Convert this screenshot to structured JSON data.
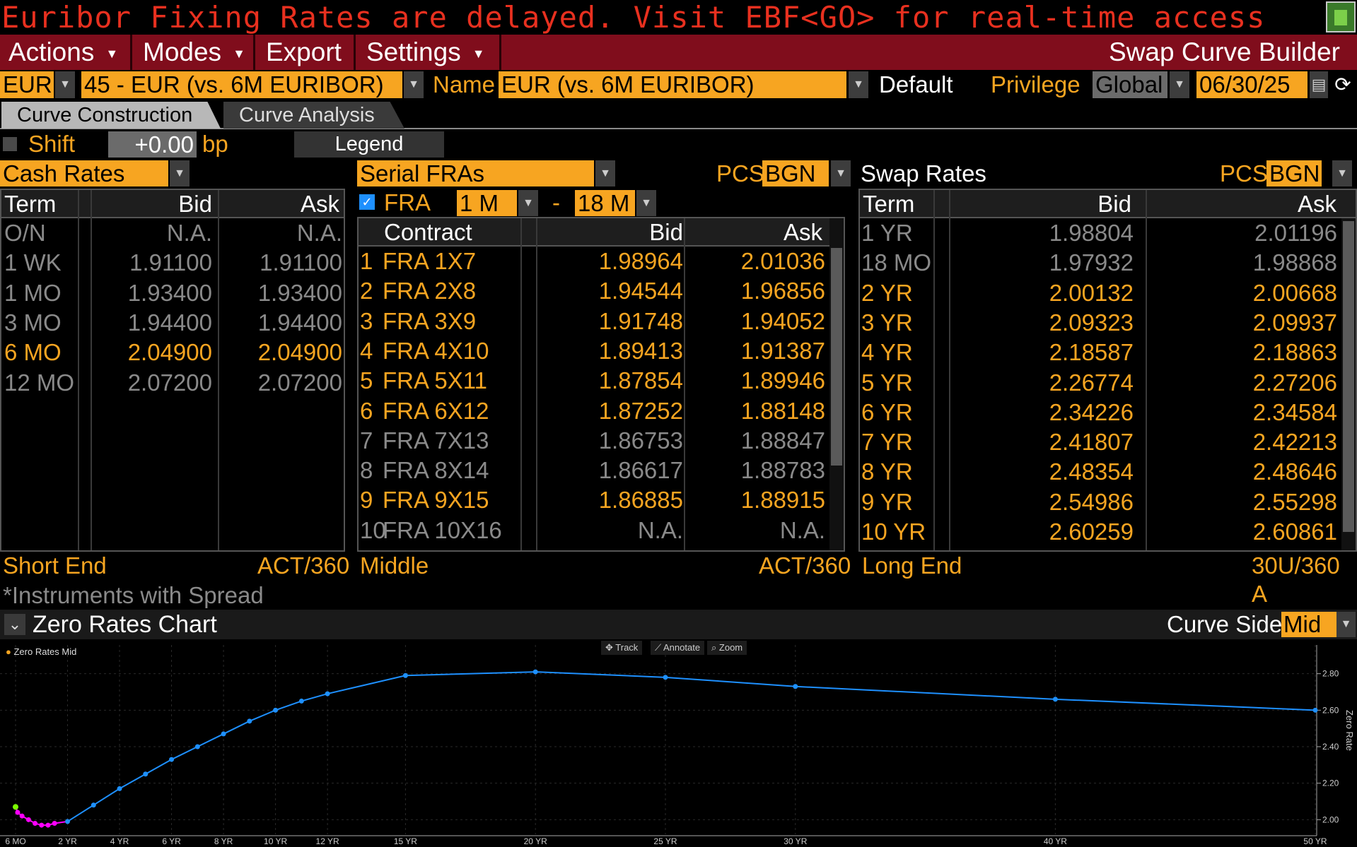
{
  "banner": {
    "text": "Euribor Fixing Rates are delayed. Visit EBF<GO> for real-time access"
  },
  "menu": {
    "actions": "Actions",
    "modes": "Modes",
    "export": "Export",
    "settings": "Settings",
    "app_title": "Swap Curve Builder"
  },
  "selection": {
    "currency": "EUR",
    "curve": "45 - EUR (vs. 6M EURIBOR)",
    "name_label": "Name",
    "name_value": "EUR (vs. 6M EURIBOR)",
    "default_label": "Default",
    "privilege_label": "Privilege",
    "privilege_value": "Global",
    "date": "06/30/25"
  },
  "tabs": {
    "construction": "Curve Construction",
    "analysis": "Curve Analysis"
  },
  "shift": {
    "label": "Shift",
    "value": "+0.00",
    "unit": "bp",
    "legend_button": "Legend"
  },
  "cash": {
    "title": "Cash Rates",
    "headers": {
      "term": "Term",
      "bid": "Bid",
      "ask": "Ask"
    },
    "rows": [
      {
        "term": "O/N",
        "bid": "N.A.",
        "ask": "N.A.",
        "state": "grey"
      },
      {
        "term": "1 WK",
        "bid": "1.91100",
        "ask": "1.91100",
        "state": "grey"
      },
      {
        "term": "1 MO",
        "bid": "1.93400",
        "ask": "1.93400",
        "state": "grey"
      },
      {
        "term": "3 MO",
        "bid": "1.94400",
        "ask": "1.94400",
        "state": "grey"
      },
      {
        "term": "6 MO",
        "bid": "2.04900",
        "ask": "2.04900",
        "state": "amber"
      },
      {
        "term": "12 MO",
        "bid": "2.07200",
        "ask": "2.07200",
        "state": "grey"
      }
    ],
    "footer_left": "Short End",
    "footer_right": "ACT/360"
  },
  "fra": {
    "title": "Serial FRAs",
    "pcs_label": "PCS",
    "pcs_value": "BGN",
    "fra_label": "FRA",
    "from": "1 M",
    "dash": "-",
    "to": "18 M",
    "headers": {
      "contract": "Contract",
      "bid": "Bid",
      "ask": "Ask"
    },
    "rows": [
      {
        "num": "1",
        "contract": "FRA 1X7",
        "bid": "1.98964",
        "ask": "2.01036",
        "state": "amber"
      },
      {
        "num": "2",
        "contract": "FRA 2X8",
        "bid": "1.94544",
        "ask": "1.96856",
        "state": "amber"
      },
      {
        "num": "3",
        "contract": "FRA 3X9",
        "bid": "1.91748",
        "ask": "1.94052",
        "state": "amber"
      },
      {
        "num": "4",
        "contract": "FRA 4X10",
        "bid": "1.89413",
        "ask": "1.91387",
        "state": "amber"
      },
      {
        "num": "5",
        "contract": "FRA 5X11",
        "bid": "1.87854",
        "ask": "1.89946",
        "state": "amber"
      },
      {
        "num": "6",
        "contract": "FRA 6X12",
        "bid": "1.87252",
        "ask": "1.88148",
        "state": "amber"
      },
      {
        "num": "7",
        "contract": "FRA 7X13",
        "bid": "1.86753",
        "ask": "1.88847",
        "state": "grey"
      },
      {
        "num": "8",
        "contract": "FRA 8X14",
        "bid": "1.86617",
        "ask": "1.88783",
        "state": "grey"
      },
      {
        "num": "9",
        "contract": "FRA 9X15",
        "bid": "1.86885",
        "ask": "1.88915",
        "state": "amber"
      },
      {
        "num": "10",
        "contract": "FRA 10X16",
        "bid": "N.A.",
        "ask": "N.A.",
        "state": "grey"
      }
    ],
    "footer_left": "Middle",
    "footer_right": "ACT/360"
  },
  "swap": {
    "title": "Swap Rates",
    "pcs_label": "PCS",
    "pcs_value": "BGN",
    "headers": {
      "term": "Term",
      "bid": "Bid",
      "ask": "Ask"
    },
    "rows": [
      {
        "term": "1 YR",
        "bid": "1.98804",
        "ask": "2.01196",
        "state": "grey"
      },
      {
        "term": "18 MO",
        "bid": "1.97932",
        "ask": "1.98868",
        "state": "grey"
      },
      {
        "term": "2 YR",
        "bid": "2.00132",
        "ask": "2.00668",
        "state": "amber"
      },
      {
        "term": "3 YR",
        "bid": "2.09323",
        "ask": "2.09937",
        "state": "amber"
      },
      {
        "term": "4 YR",
        "bid": "2.18587",
        "ask": "2.18863",
        "state": "amber"
      },
      {
        "term": "5 YR",
        "bid": "2.26774",
        "ask": "2.27206",
        "state": "amber"
      },
      {
        "term": "6 YR",
        "bid": "2.34226",
        "ask": "2.34584",
        "state": "amber"
      },
      {
        "term": "7 YR",
        "bid": "2.41807",
        "ask": "2.42213",
        "state": "amber"
      },
      {
        "term": "8 YR",
        "bid": "2.48354",
        "ask": "2.48646",
        "state": "amber"
      },
      {
        "term": "9 YR",
        "bid": "2.54986",
        "ask": "2.55298",
        "state": "amber"
      },
      {
        "term": "10 YR",
        "bid": "2.60259",
        "ask": "2.60861",
        "state": "amber"
      }
    ],
    "footer_left": "Long End",
    "footer_right": "30U/360 A"
  },
  "instruments_note": "*Instruments with Spread",
  "chart_header": {
    "title": "Zero Rates Chart",
    "curve_side_label": "Curve Side",
    "curve_side_value": "Mid"
  },
  "chart_tools": {
    "track": "Track",
    "annotate": "Annotate",
    "zoom": "Zoom"
  },
  "colors": {
    "amber": "#f7a521",
    "grey": "#8a8a8a",
    "menu_bg": "#800d1c",
    "banner_text": "#e8301f",
    "line": "#1e90ff",
    "short_end": "#ff00ff",
    "first_point": "#7cfc00"
  },
  "chart_data": {
    "type": "line",
    "legend": "Zero Rates Mid",
    "ylabel": "Zero Rate",
    "xlim": [
      0,
      50
    ],
    "ylim": [
      1.92,
      2.88
    ],
    "x_ticks": [
      {
        "x": 0,
        "label": "6 MO"
      },
      {
        "x": 2,
        "label": "2 YR"
      },
      {
        "x": 4,
        "label": "4 YR"
      },
      {
        "x": 6,
        "label": "6 YR"
      },
      {
        "x": 8,
        "label": "8 YR"
      },
      {
        "x": 10,
        "label": "10 YR"
      },
      {
        "x": 12,
        "label": "12 YR"
      },
      {
        "x": 15,
        "label": "15 YR"
      },
      {
        "x": 20,
        "label": "20 YR"
      },
      {
        "x": 25,
        "label": "25 YR"
      },
      {
        "x": 30,
        "label": "30 YR"
      },
      {
        "x": 40,
        "label": "40 YR"
      },
      {
        "x": 50,
        "label": "50 YR"
      }
    ],
    "y_ticks": [
      "2.00",
      "2.20",
      "2.40",
      "2.60",
      "2.80"
    ],
    "series": [
      {
        "name": "Zero Rates Mid",
        "x": [
          0.0,
          0.08,
          0.25,
          0.5,
          0.75,
          1.0,
          1.25,
          1.5,
          2,
          3,
          4,
          5,
          6,
          7,
          8,
          9,
          10,
          11,
          12,
          15,
          20,
          25,
          30,
          40,
          50
        ],
        "y": [
          2.07,
          2.04,
          2.02,
          2.0,
          1.98,
          1.97,
          1.97,
          1.98,
          1.99,
          2.08,
          2.17,
          2.25,
          2.33,
          2.4,
          2.47,
          2.54,
          2.6,
          2.65,
          2.69,
          2.79,
          2.81,
          2.78,
          2.73,
          2.66,
          2.6
        ]
      }
    ]
  }
}
